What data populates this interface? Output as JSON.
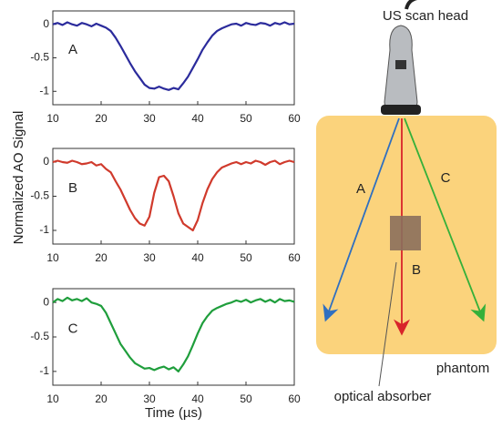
{
  "chart_data": [
    {
      "type": "line",
      "ylabel": "Normalized AO Signal",
      "annotation": "A",
      "x": [
        10,
        11,
        12,
        13,
        14,
        15,
        16,
        17,
        18,
        19,
        20,
        21,
        22,
        23,
        24,
        25,
        26,
        27,
        28,
        29,
        30,
        31,
        32,
        33,
        34,
        35,
        36,
        37,
        38,
        39,
        40,
        41,
        42,
        43,
        44,
        45,
        46,
        47,
        48,
        49,
        50,
        51,
        52,
        53,
        54,
        55,
        56,
        57,
        58,
        59,
        60
      ],
      "series": [
        {
          "color": "#2b2b9c",
          "values": [
            0,
            0.02,
            -0.01,
            0.03,
            0,
            -0.02,
            0.02,
            0,
            -0.03,
            0.01,
            -0.02,
            -0.05,
            -0.1,
            -0.2,
            -0.32,
            -0.45,
            -0.58,
            -0.7,
            -0.8,
            -0.9,
            -0.95,
            -0.96,
            -0.93,
            -0.96,
            -0.98,
            -0.95,
            -0.97,
            -0.88,
            -0.78,
            -0.65,
            -0.52,
            -0.38,
            -0.27,
            -0.17,
            -0.1,
            -0.06,
            -0.03,
            0,
            0.01,
            -0.02,
            0.02,
            0,
            -0.01,
            0.02,
            0.01,
            -0.02,
            0.02,
            0,
            0.03,
            0,
            0.01
          ]
        }
      ],
      "xlim": [
        10,
        60
      ],
      "ylim": [
        -1.2,
        0.2
      ],
      "xticks": [
        10,
        20,
        30,
        40,
        50,
        60
      ],
      "yticks": [
        -1,
        -0.5,
        0
      ]
    },
    {
      "type": "line",
      "annotation": "B",
      "x": [
        10,
        11,
        12,
        13,
        14,
        15,
        16,
        17,
        18,
        19,
        20,
        21,
        22,
        23,
        24,
        25,
        26,
        27,
        28,
        29,
        30,
        31,
        32,
        33,
        34,
        35,
        36,
        37,
        38,
        39,
        40,
        41,
        42,
        43,
        44,
        45,
        46,
        47,
        48,
        49,
        50,
        51,
        52,
        53,
        54,
        55,
        56,
        57,
        58,
        59,
        60
      ],
      "series": [
        {
          "color": "#d03a2c",
          "values": [
            0,
            0.02,
            0,
            -0.01,
            0.02,
            0,
            -0.03,
            -0.02,
            0,
            -0.05,
            -0.03,
            -0.1,
            -0.15,
            -0.28,
            -0.4,
            -0.55,
            -0.7,
            -0.82,
            -0.9,
            -0.93,
            -0.8,
            -0.45,
            -0.22,
            -0.2,
            -0.28,
            -0.5,
            -0.75,
            -0.9,
            -0.95,
            -1,
            -0.85,
            -0.6,
            -0.4,
            -0.25,
            -0.15,
            -0.08,
            -0.05,
            -0.02,
            0,
            -0.03,
            0,
            -0.02,
            0.02,
            0,
            -0.04,
            0,
            0.02,
            -0.03,
            0,
            0.02,
            0
          ]
        }
      ],
      "xlim": [
        10,
        60
      ],
      "ylim": [
        -1.2,
        0.2
      ],
      "xticks": [
        10,
        20,
        30,
        40,
        50,
        60
      ],
      "yticks": [
        -1,
        -0.5,
        0
      ]
    },
    {
      "type": "line",
      "annotation": "C",
      "xlabel": "Time (µs)",
      "x": [
        10,
        11,
        12,
        13,
        14,
        15,
        16,
        17,
        18,
        19,
        20,
        21,
        22,
        23,
        24,
        25,
        26,
        27,
        28,
        29,
        30,
        31,
        32,
        33,
        34,
        35,
        36,
        37,
        38,
        39,
        40,
        41,
        42,
        43,
        44,
        45,
        46,
        47,
        48,
        49,
        50,
        51,
        52,
        53,
        54,
        55,
        56,
        57,
        58,
        59,
        60
      ],
      "series": [
        {
          "color": "#1f9e3c",
          "values": [
            0,
            0.05,
            0.02,
            0.07,
            0.03,
            0.05,
            0.02,
            0.06,
            0,
            -0.02,
            -0.05,
            -0.15,
            -0.3,
            -0.45,
            -0.6,
            -0.7,
            -0.8,
            -0.88,
            -0.92,
            -0.96,
            -0.95,
            -0.98,
            -0.95,
            -0.93,
            -0.97,
            -0.94,
            -1,
            -0.9,
            -0.78,
            -0.62,
            -0.45,
            -0.3,
            -0.2,
            -0.12,
            -0.08,
            -0.05,
            -0.02,
            0,
            0.03,
            0.01,
            0.04,
            0,
            0.03,
            0.05,
            0.01,
            0.04,
            0,
            0.05,
            0.02,
            0.03,
            0.01
          ]
        }
      ],
      "xlim": [
        10,
        60
      ],
      "ylim": [
        -1.2,
        0.2
      ],
      "xticks": [
        10,
        20,
        30,
        40,
        50,
        60
      ],
      "yticks": [
        -1,
        -0.5,
        0
      ]
    }
  ],
  "diagram": {
    "scan_head": "US scan head",
    "beam_a": "A",
    "beam_b": "B",
    "beam_c": "C",
    "phantom": "phantom",
    "absorber": "optical absorber"
  }
}
